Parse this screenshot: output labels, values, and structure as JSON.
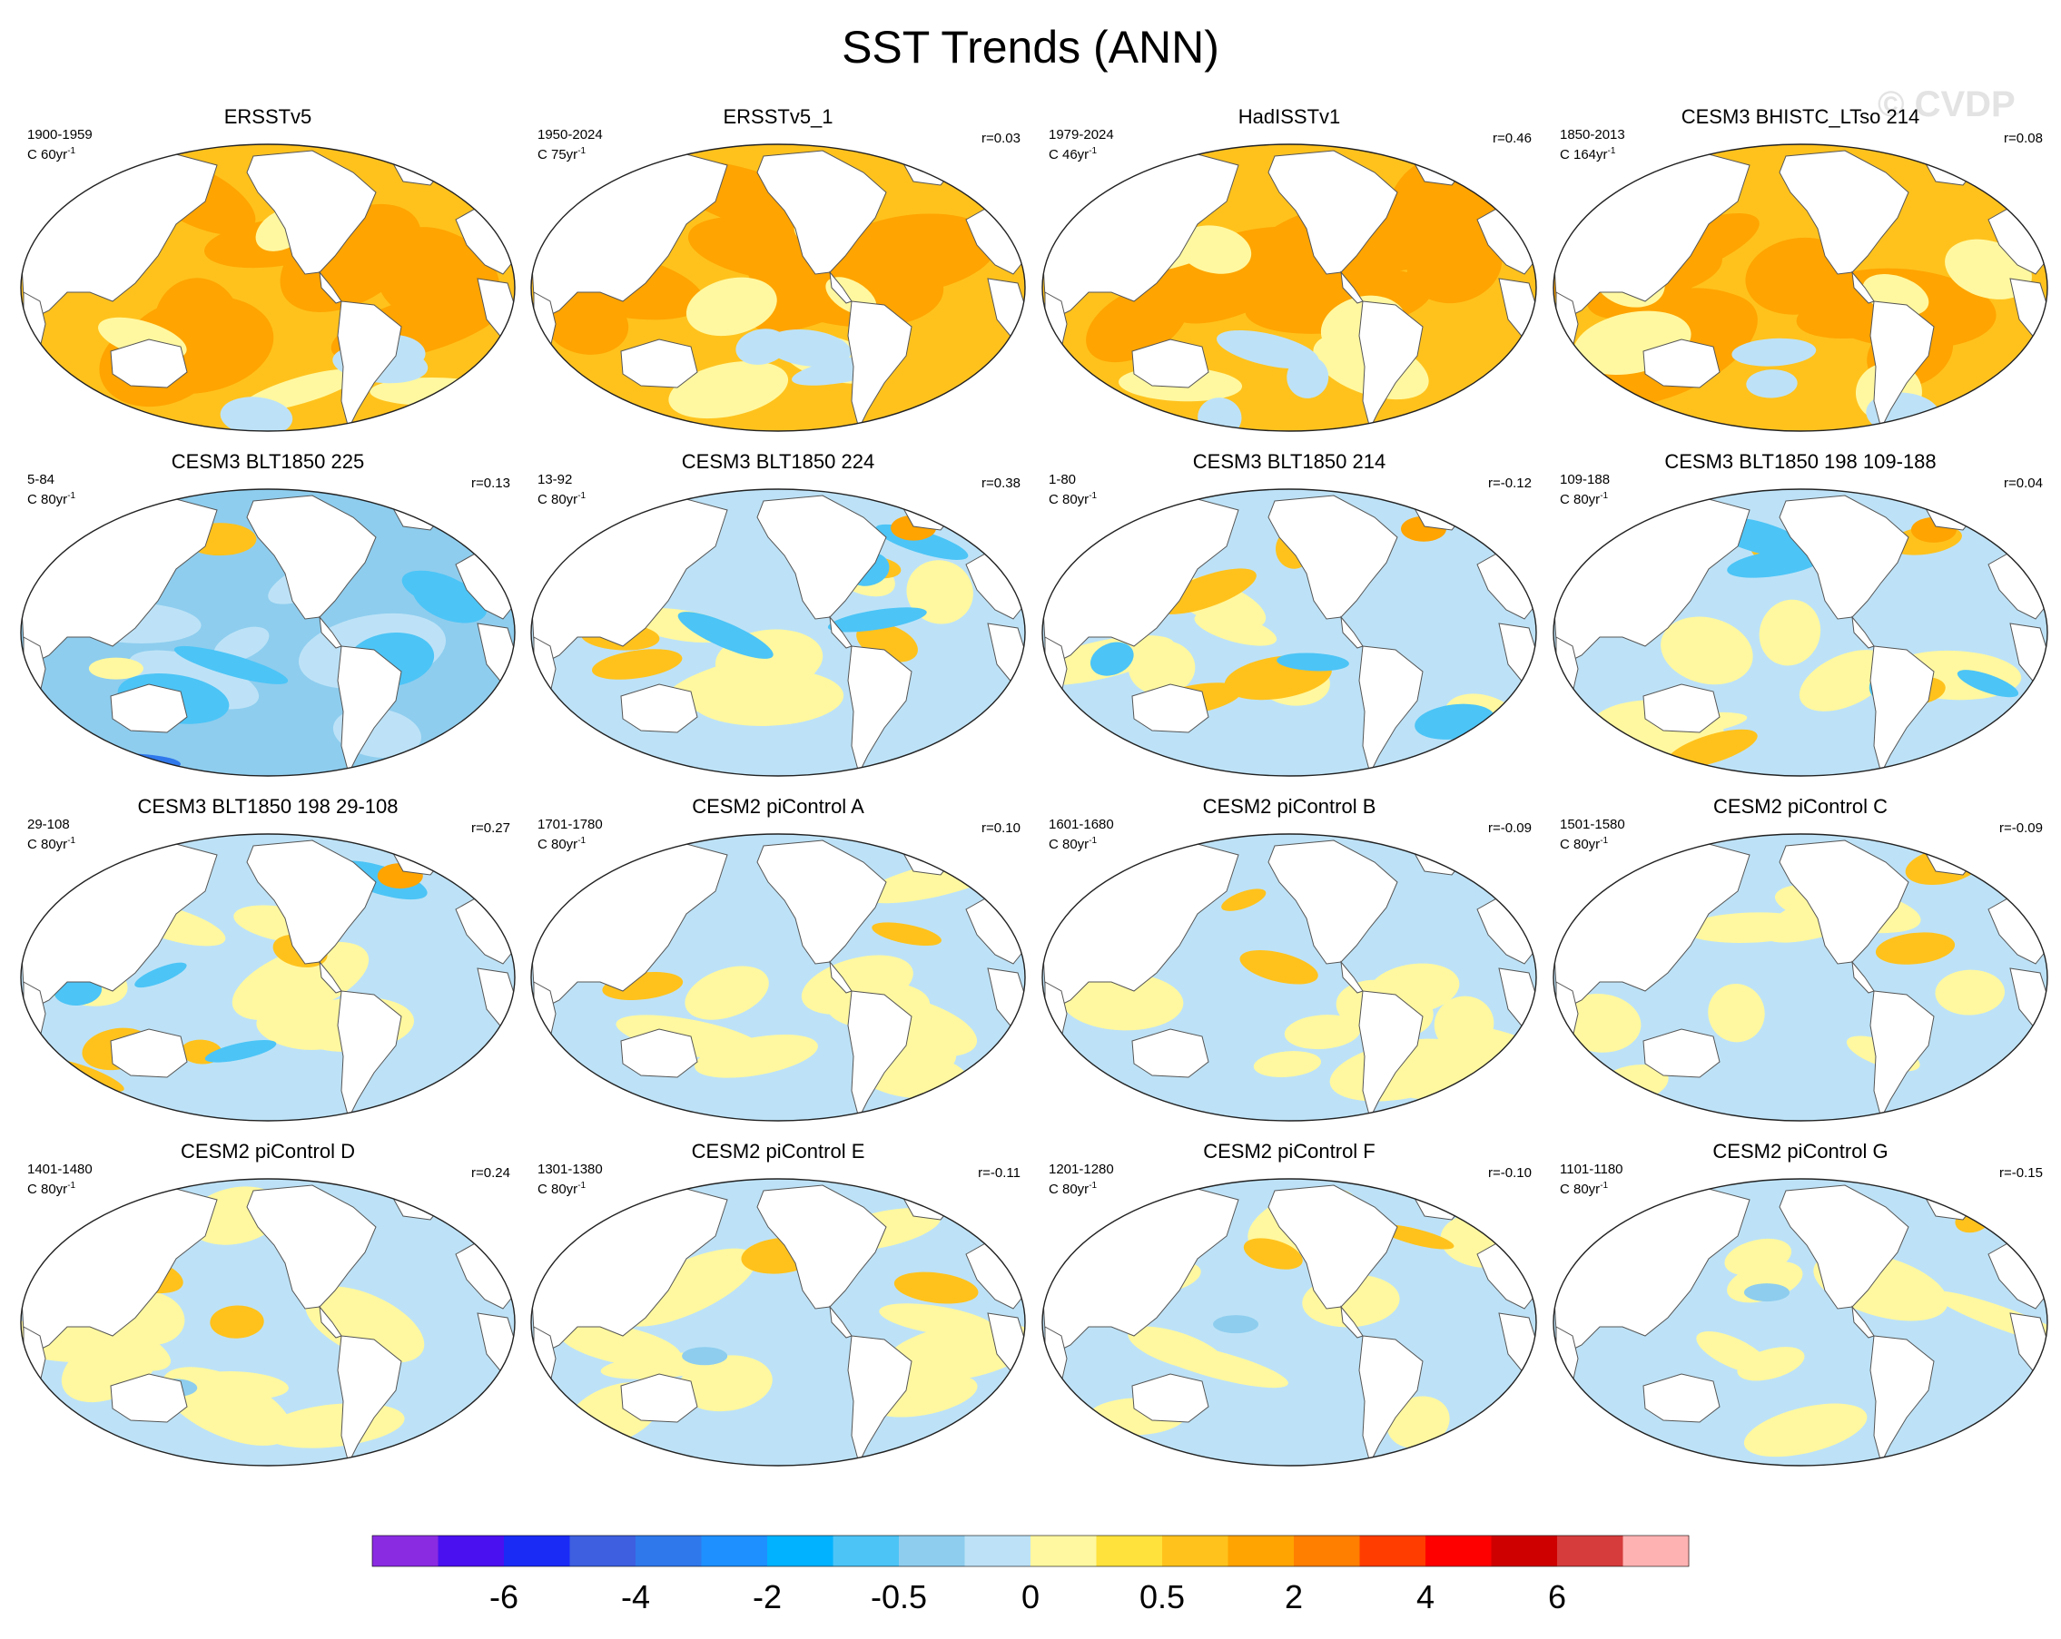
{
  "title": "SST Trends (ANN)",
  "watermark": "© CVDP",
  "panels": [
    {
      "title": "ERSSTv5",
      "years": "1900-1959",
      "units": "C 60yr",
      "units_sup": "-1",
      "r": "",
      "pattern": "warm-strong"
    },
    {
      "title": "ERSSTv5_1",
      "years": "1950-2024",
      "units": "C 75yr",
      "units_sup": "-1",
      "r": "r=0.03",
      "pattern": "warm-strong"
    },
    {
      "title": "HadISSTv1",
      "years": "1979-2024",
      "units": "C 46yr",
      "units_sup": "-1",
      "r": "r=0.46",
      "pattern": "warm-strong"
    },
    {
      "title": "CESM3 BHISTC_LTso 214",
      "years": "1850-2013",
      "units": "C 164yr",
      "units_sup": "-1",
      "r": "r=0.08",
      "pattern": "warm-strong"
    },
    {
      "title": "CESM3 BLT1850 225",
      "years": "5-84",
      "units": "C 80yr",
      "units_sup": "-1",
      "r": "r=0.13",
      "pattern": "cool"
    },
    {
      "title": "CESM3 BLT1850 224",
      "years": "13-92",
      "units": "C 80yr",
      "units_sup": "-1",
      "r": "r=0.38",
      "pattern": "mixed"
    },
    {
      "title": "CESM3 BLT1850 214",
      "years": "1-80",
      "units": "C 80yr",
      "units_sup": "-1",
      "r": "r=-0.12",
      "pattern": "mixed"
    },
    {
      "title": "CESM3 BLT1850 198 109-188",
      "years": "109-188",
      "units": "C 80yr",
      "units_sup": "-1",
      "r": "r=0.04",
      "pattern": "mixed"
    },
    {
      "title": "CESM3 BLT1850 198 29-108",
      "years": "29-108",
      "units": "C 80yr",
      "units_sup": "-1",
      "r": "r=0.27",
      "pattern": "mixed"
    },
    {
      "title": "CESM2 piControl A",
      "years": "1701-1780",
      "units": "C 80yr",
      "units_sup": "-1",
      "r": "r=0.10",
      "pattern": "neutral"
    },
    {
      "title": "CESM2 piControl B",
      "years": "1601-1680",
      "units": "C 80yr",
      "units_sup": "-1",
      "r": "r=-0.09",
      "pattern": "neutral"
    },
    {
      "title": "CESM2 piControl C",
      "years": "1501-1580",
      "units": "C 80yr",
      "units_sup": "-1",
      "r": "r=-0.09",
      "pattern": "neutral"
    },
    {
      "title": "CESM2 piControl D",
      "years": "1401-1480",
      "units": "C 80yr",
      "units_sup": "-1",
      "r": "r=0.24",
      "pattern": "neutral"
    },
    {
      "title": "CESM2 piControl E",
      "years": "1301-1380",
      "units": "C 80yr",
      "units_sup": "-1",
      "r": "r=-0.11",
      "pattern": "neutral"
    },
    {
      "title": "CESM2 piControl F",
      "years": "1201-1280",
      "units": "C 80yr",
      "units_sup": "-1",
      "r": "r=-0.10",
      "pattern": "neutral"
    },
    {
      "title": "CESM2 piControl G",
      "years": "1101-1180",
      "units": "C 80yr",
      "units_sup": "-1",
      "r": "r=-0.15",
      "pattern": "neutral"
    }
  ],
  "colorbar": {
    "colors": [
      "#8a2be2",
      "#4a10f0",
      "#1a2bf6",
      "#3d5fe0",
      "#2f78ec",
      "#1e90ff",
      "#00b2ff",
      "#4cc4f6",
      "#8ecdee",
      "#bde2f7",
      "#fff8a0",
      "#ffe23c",
      "#ffc21d",
      "#ffa400",
      "#ff7f00",
      "#ff3d00",
      "#ff0000",
      "#cf0000",
      "#d63c3c",
      "#ffb2b2"
    ],
    "labels": [
      {
        "text": "-6",
        "boundary": 2
      },
      {
        "text": "-4",
        "boundary": 4
      },
      {
        "text": "-2",
        "boundary": 6
      },
      {
        "text": "-0.5",
        "boundary": 8
      },
      {
        "text": "0",
        "boundary": 10
      },
      {
        "text": "0.5",
        "boundary": 12
      },
      {
        "text": "2",
        "boundary": 14
      },
      {
        "text": "4",
        "boundary": 16
      },
      {
        "text": "6",
        "boundary": 18
      }
    ]
  },
  "palette": {
    "land": "#ffffff",
    "coast": "#555555",
    "warm_strong": "#ffa400",
    "warm_mid": "#ffc21d",
    "warm_weak": "#fff8a0",
    "cool_weak": "#bde2f7",
    "cool_mid": "#8ecdee",
    "cool_strong": "#4cc4f6",
    "cool_deep": "#2f78ec"
  }
}
